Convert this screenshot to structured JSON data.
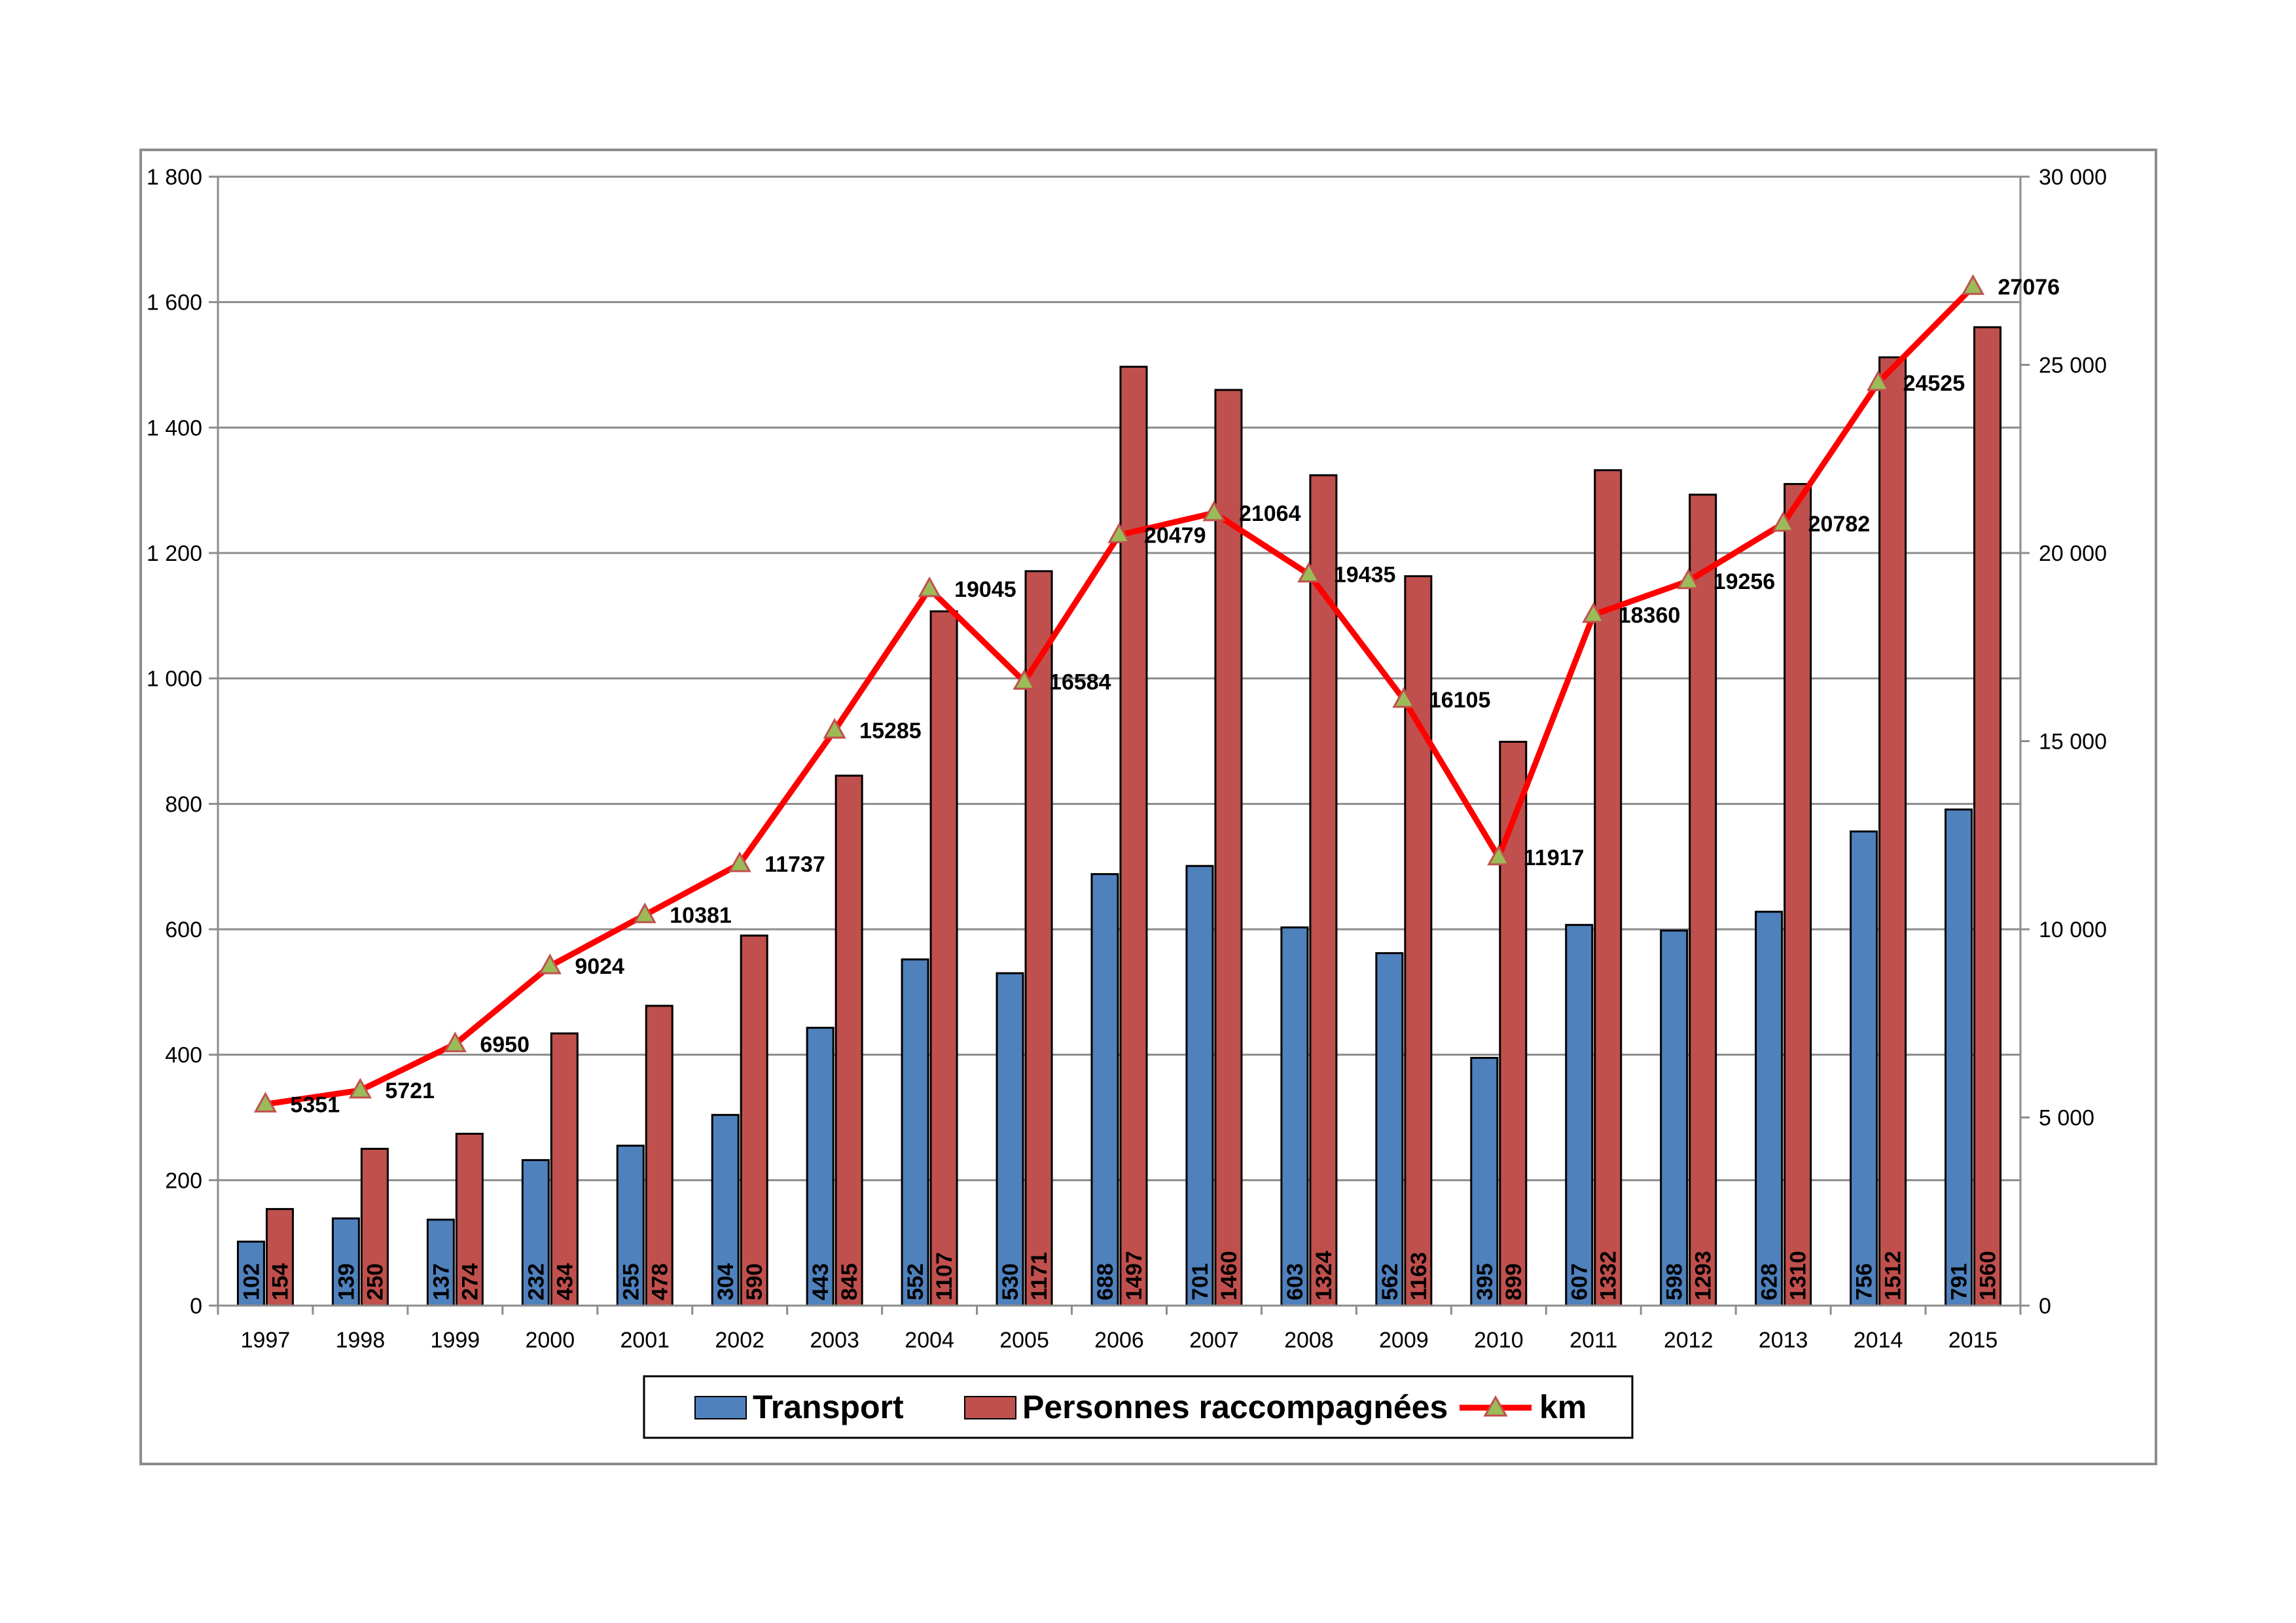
{
  "chart_data": {
    "type": "bar",
    "categories": [
      "1997",
      "1998",
      "1999",
      "2000",
      "2001",
      "2002",
      "2003",
      "2004",
      "2005",
      "2006",
      "2007",
      "2008",
      "2009",
      "2010",
      "2011",
      "2012",
      "2013",
      "2014",
      "2015"
    ],
    "series": [
      {
        "name": "Transport",
        "type": "bar",
        "axis": "left",
        "color": "#4f81bd",
        "values": [
          102,
          139,
          137,
          232,
          255,
          304,
          443,
          552,
          530,
          688,
          701,
          603,
          562,
          395,
          607,
          598,
          628,
          756,
          791
        ]
      },
      {
        "name": "Personnes raccompagnées",
        "type": "bar",
        "axis": "left",
        "color": "#c0504d",
        "values": [
          154,
          250,
          274,
          434,
          478,
          590,
          845,
          1107,
          1171,
          1497,
          1460,
          1324,
          1163,
          899,
          1332,
          1293,
          1310,
          1512,
          1560
        ]
      },
      {
        "name": "km",
        "type": "line",
        "axis": "right",
        "color": "#ff0000",
        "marker": "triangle",
        "marker_color": "#9bbb59",
        "values": [
          5351,
          5721,
          6950,
          9024,
          10381,
          11737,
          15285,
          19045,
          16584,
          20479,
          21064,
          19435,
          16105,
          11917,
          18360,
          19256,
          20782,
          24525,
          27076
        ]
      }
    ],
    "y_left": {
      "ylim": [
        0,
        1800
      ],
      "ticks": [
        "0",
        "200",
        "400",
        "600",
        "800",
        "1 000",
        "1 200",
        "1 400",
        "1 600",
        "1 800"
      ],
      "tick_values": [
        0,
        200,
        400,
        600,
        800,
        1000,
        1200,
        1400,
        1600,
        1800
      ]
    },
    "y_right": {
      "ylim": [
        0,
        30000
      ],
      "ticks": [
        "0",
        "5 000",
        "10 000",
        "15 000",
        "20 000",
        "25 000",
        "30 000"
      ],
      "tick_values": [
        0,
        5000,
        10000,
        15000,
        20000,
        25000,
        30000
      ]
    },
    "grid": true,
    "legend_position": "bottom",
    "title": "",
    "xlabel": "",
    "ylabel": ""
  }
}
